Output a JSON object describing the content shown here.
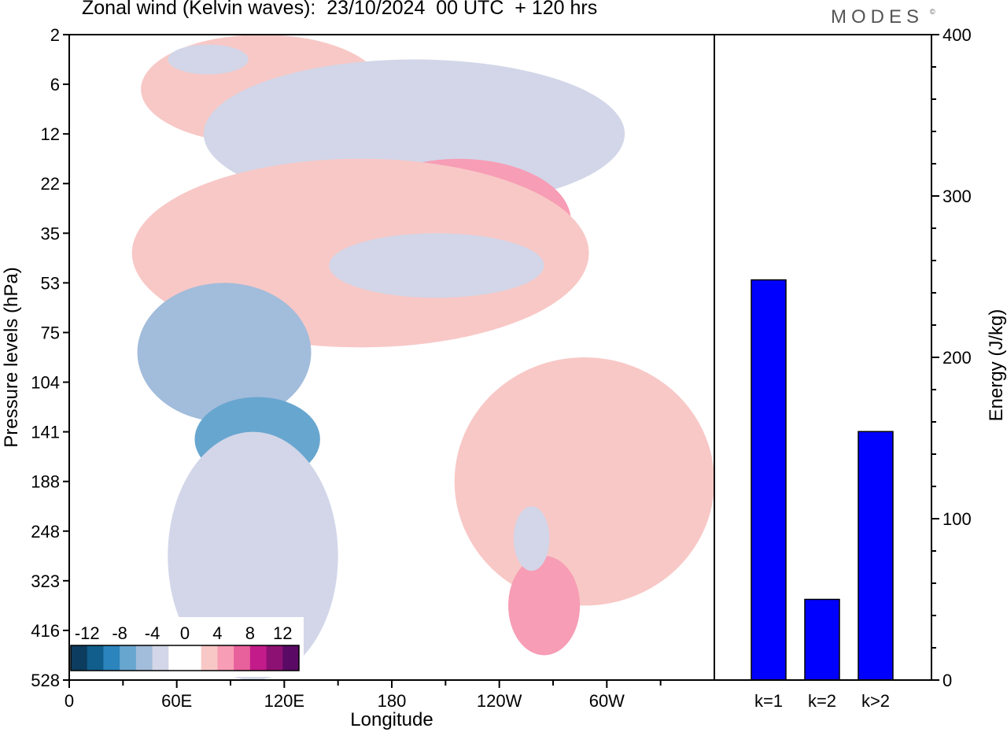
{
  "header": {
    "title": "Zonal wind (Kelvin waves):  23/10/2024  00 UTC  + 120 hrs",
    "brand": "MODES",
    "brand_mark": "©"
  },
  "chart_data": [
    {
      "type": "heatmap",
      "title": "Zonal wind (Kelvin waves):  23/10/2024  00 UTC  + 120 hrs",
      "xlabel": "Longitude",
      "ylabel": "Pressure levels (hPa)",
      "x_ticks": [
        "0",
        "60E",
        "120E",
        "180",
        "120W",
        "60W"
      ],
      "y_ticks": [
        "2",
        "6",
        "12",
        "22",
        "35",
        "53",
        "75",
        "104",
        "141",
        "188",
        "248",
        "323",
        "416",
        "528"
      ],
      "colorbar": {
        "labels": [
          "-12",
          "-8",
          "-4",
          "0",
          "4",
          "8",
          "12"
        ],
        "colors": [
          "#0c3c5e",
          "#115d8c",
          "#2c84bd",
          "#67a6cf",
          "#a2bcdb",
          "#d2d6e8",
          "#ffffff",
          "#ffffff",
          "#f8c8c6",
          "#f79db5",
          "#e8609c",
          "#c31b8a",
          "#8d1173",
          "#5a0a64"
        ]
      },
      "features": [
        {
          "sign": "positive",
          "level": 1,
          "lon": [
            75,
            90
          ],
          "lev": [
            0.3,
            1.6
          ],
          "peak": 6
        },
        {
          "sign": "positive",
          "level": 0,
          "lon": [
            40,
            175
          ],
          "lev": [
            0,
            2.2
          ],
          "peak": 5
        },
        {
          "sign": "negative",
          "level": 0,
          "lon": [
            55,
            100
          ],
          "lev": [
            0.2,
            0.8
          ],
          "peak": -4
        },
        {
          "sign": "negative",
          "level": 0,
          "lon": [
            75,
            310
          ],
          "lev": [
            0.5,
            3.5
          ],
          "peak": -4
        },
        {
          "sign": "positive",
          "level": 1,
          "lon": [
            155,
            280
          ],
          "lev": [
            2.5,
            5.0
          ],
          "peak": 6
        },
        {
          "sign": "positive",
          "level": 0,
          "lon": [
            35,
            290
          ],
          "lev": [
            2.5,
            6.3
          ],
          "peak": 5
        },
        {
          "sign": "negative",
          "level": 0,
          "lon": [
            145,
            265
          ],
          "lev": [
            4.0,
            5.3
          ],
          "peak": -4
        },
        {
          "sign": "positive",
          "level": 1,
          "lon": [
            60,
            130
          ],
          "lev": [
            6.2,
            7.3
          ],
          "peak": 6
        },
        {
          "sign": "negative",
          "level": 1,
          "lon": [
            38,
            135
          ],
          "lev": [
            5.0,
            7.8
          ],
          "peak": -6
        },
        {
          "sign": "negative",
          "level": 2,
          "lon": [
            70,
            140
          ],
          "lev": [
            7.3,
            9.0
          ],
          "peak": -10
        },
        {
          "sign": "positive",
          "level": 1,
          "lon": [
            295,
            320
          ],
          "lev": [
            7.5,
            9.5
          ],
          "peak": 6
        },
        {
          "sign": "positive",
          "level": 0,
          "lon": [
            215,
            360
          ],
          "lev": [
            6.5,
            11.5
          ],
          "peak": 5
        },
        {
          "sign": "positive",
          "level": 1,
          "lon": [
            245,
            285
          ],
          "lev": [
            10.5,
            12.5
          ],
          "peak": 6
        },
        {
          "sign": "negative",
          "level": 0,
          "lon": [
            55,
            150
          ],
          "lev": [
            8.0,
            13.0
          ],
          "peak": -4
        },
        {
          "sign": "negative",
          "level": 0,
          "lon": [
            248,
            268
          ],
          "lev": [
            9.5,
            10.8
          ],
          "peak": -5
        }
      ]
    },
    {
      "type": "bar",
      "categories": [
        "k=1",
        "k=2",
        "k>2"
      ],
      "values": [
        248,
        50,
        154
      ],
      "ylabel": "Energy (J/kg)",
      "ylim": [
        0,
        400
      ],
      "y_ticks": [
        "0",
        "100",
        "200",
        "300",
        "400"
      ],
      "bar_color": "#0000ff"
    }
  ]
}
